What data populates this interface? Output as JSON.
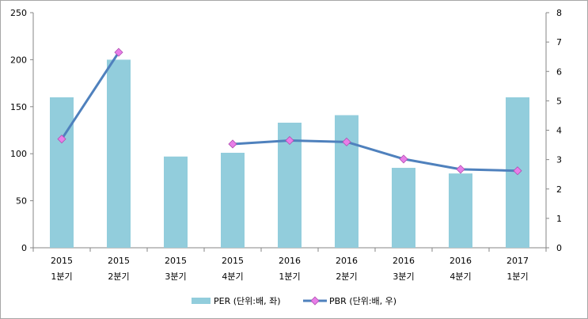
{
  "chart_data": {
    "type": "bar",
    "categories": [
      {
        "year": "2015",
        "quarter": "1분기"
      },
      {
        "year": "2015",
        "quarter": "2분기"
      },
      {
        "year": "2015",
        "quarter": "3분기"
      },
      {
        "year": "2015",
        "quarter": "4분기"
      },
      {
        "year": "2016",
        "quarter": "1분기"
      },
      {
        "year": "2016",
        "quarter": "2분기"
      },
      {
        "year": "2016",
        "quarter": "3분기"
      },
      {
        "year": "2016",
        "quarter": "4분기"
      },
      {
        "year": "2017",
        "quarter": "1분기"
      }
    ],
    "series": [
      {
        "name": "PER (단위:배, 좌)",
        "type": "bar",
        "axis": "left",
        "color": "#92cddc",
        "values": [
          160,
          200,
          97,
          101,
          133,
          141,
          85,
          79,
          160
        ]
      },
      {
        "name": "PBR (단위:배, 우)",
        "type": "line",
        "axis": "right",
        "color": "#4f81bd",
        "marker_color": "#e87ee8",
        "values": [
          3.7,
          6.65,
          null,
          3.53,
          3.65,
          3.6,
          3.02,
          2.67,
          2.62
        ]
      }
    ],
    "y_left": {
      "min": 0,
      "max": 250,
      "ticks": [
        "0",
        "50",
        "100",
        "150",
        "200",
        "250"
      ]
    },
    "y_right": {
      "min": 0,
      "max": 8,
      "ticks": [
        "0",
        "1",
        "2",
        "3",
        "4",
        "5",
        "6",
        "7",
        "8"
      ]
    },
    "grid": false,
    "legend_position": "bottom"
  }
}
